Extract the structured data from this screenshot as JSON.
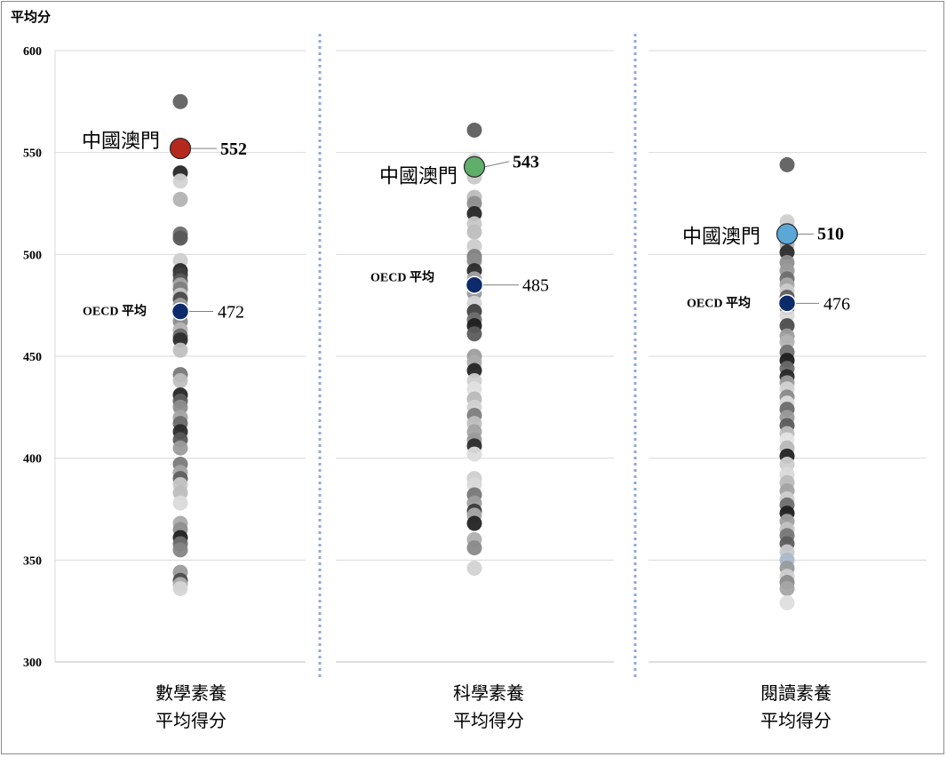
{
  "chart_data": {
    "type": "scatter",
    "ylabel": "平均分",
    "ylim": [
      300,
      600
    ],
    "yticks": [
      "300",
      "350",
      "400",
      "450",
      "500",
      "550",
      "600"
    ],
    "grid": true,
    "panels": [
      {
        "category": "數學素養",
        "category2": "平均得分",
        "highlight": {
          "label": "中國澳門",
          "value": 552,
          "value_label": "552",
          "color": "#b5281e"
        },
        "oecd": {
          "label": "OECD 平均",
          "value": 472,
          "value_label": "472",
          "color": "#0d2b6b"
        },
        "points": [
          575,
          540,
          536,
          527,
          510,
          508,
          497,
          492,
          490,
          487,
          485,
          483,
          480,
          478,
          475,
          470,
          467,
          463,
          460,
          458,
          453,
          441,
          438,
          431,
          428,
          425,
          420,
          417,
          413,
          409,
          405,
          397,
          393,
          390,
          387,
          383,
          378,
          368,
          365,
          361,
          358,
          355,
          344,
          340,
          338,
          336
        ],
        "point_colors": [
          "#616161",
          "#262626",
          "#d3d3d3",
          "#b3b3b3",
          "#6e6e6e",
          "#575757",
          "#cfcfcf",
          "#2a2a2a",
          "#3e3e3e",
          "#5a5a5a",
          "#a8a8a8",
          "#7f7f7f",
          "#c4c4c4",
          "#4a4a4a",
          "#9e9e9e",
          "#e0e0e0",
          "#8a8a8a",
          "#b5b5b5",
          "#6a6a6a",
          "#2e2e2e",
          "#c0c0c0",
          "#777777",
          "#bfbfbf",
          "#262626",
          "#5f5f5f",
          "#8e8e8e",
          "#a4a4a4",
          "#6c6c6c",
          "#2a2a2a",
          "#585858",
          "#9c9c9c",
          "#7a7a7a",
          "#a6a6a6",
          "#5e5e5e",
          "#c8c8c8",
          "#bdbdbd",
          "#dadada",
          "#aaaaaa",
          "#8f8f8f",
          "#222222",
          "#6f6f6f",
          "#858585",
          "#9b9b9b",
          "#4d4d4d",
          "#b0b0b0",
          "#d6d6d6"
        ]
      },
      {
        "category": "科學素養",
        "category2": "平均得分",
        "highlight": {
          "label": "中國澳門",
          "value": 543,
          "value_label": "543",
          "color": "#5fae6a"
        },
        "oecd": {
          "label": "OECD 平均",
          "value": 485,
          "value_label": "485",
          "color": "#0d2b6b"
        },
        "points": [
          561,
          546,
          538,
          528,
          525,
          520,
          515,
          511,
          504,
          499,
          497,
          492,
          488,
          481,
          476,
          472,
          468,
          465,
          461,
          450,
          447,
          443,
          438,
          434,
          429,
          425,
          421,
          417,
          413,
          409,
          406,
          402,
          390,
          387,
          382,
          378,
          374,
          372,
          368,
          360,
          356,
          346
        ],
        "point_colors": [
          "#5e5e5e",
          "#d9d9d9",
          "#c9c9c9",
          "#bcbcbc",
          "#8e8e8e",
          "#262626",
          "#c7c7c7",
          "#bebebe",
          "#cdcdcd",
          "#7f7f7f",
          "#8b8b8b",
          "#2a2a2a",
          "#a5a5a5",
          "#9a9a9a",
          "#d4d4d4",
          "#414141",
          "#6f6f6f",
          "#1e1e1e",
          "#5c5c5c",
          "#9d9d9d",
          "#adadad",
          "#242424",
          "#cfcfcf",
          "#e0e0e0",
          "#b9b9b9",
          "#d2d2d2",
          "#7e7e7e",
          "#bfbfbf",
          "#a3a3a3",
          "#9b9b9b",
          "#2c2c2c",
          "#dcdcdc",
          "#cfcfcf",
          "#d9d9d9",
          "#777777",
          "#9e9e9e",
          "#3b3b3b",
          "#aaaaaa",
          "#232323",
          "#b0b0b0",
          "#8a8a8a",
          "#d3d3d3"
        ]
      },
      {
        "category": "閱讀素養",
        "category2": "平均得分",
        "highlight": {
          "label": "中國澳門",
          "value": 510,
          "value_label": "510",
          "color": "#5ba8d6"
        },
        "oecd": {
          "label": "OECD 平均",
          "value": 476,
          "value_label": "476",
          "color": "#0d2b6b"
        },
        "points": [
          544,
          516,
          505,
          501,
          496,
          492,
          488,
          485,
          482,
          479,
          474,
          470,
          465,
          460,
          457,
          452,
          448,
          444,
          440,
          437,
          434,
          430,
          427,
          424,
          420,
          416,
          412,
          409,
          405,
          401,
          397,
          392,
          388,
          384,
          380,
          377,
          373,
          369,
          365,
          362,
          358,
          354,
          350,
          346,
          342,
          339,
          336,
          329
        ],
        "point_colors": [
          "#5f5f5f",
          "#cfcfcf",
          "#b5b5b5",
          "#2b2b2b",
          "#8f8f8f",
          "#9a9a9a",
          "#6f6f6f",
          "#a9a9a9",
          "#cccccc",
          "#5e5e5e",
          "#3c3c3c",
          "#dadada",
          "#4c4c4c",
          "#9d9d9d",
          "#b4b4b4",
          "#707070",
          "#1e1e1e",
          "#6a6a6a",
          "#282828",
          "#9c9c9c",
          "#d3d3d3",
          "#8a8a8a",
          "#dcdcdc",
          "#6a6a6a",
          "#9b9b9b",
          "#5c5c5c",
          "#bebebe",
          "#e5e5e5",
          "#b8b8b8",
          "#242424",
          "#cdcdcd",
          "#d9d9d9",
          "#bbbbbb",
          "#a3a3a3",
          "#cfcfcf",
          "#6e6e6e",
          "#1f1f1f",
          "#9f9f9f",
          "#c3c3c3",
          "#777777",
          "#5d5d5d",
          "#c9c9c9",
          "#a9b8cc",
          "#9a9a9a",
          "#cfcfcf",
          "#8c8c8c",
          "#a7a7a7",
          "#dedede"
        ]
      }
    ]
  }
}
